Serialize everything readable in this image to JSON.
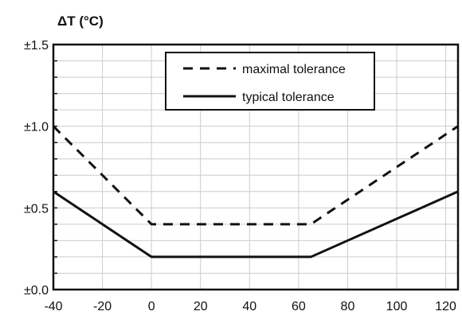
{
  "chart_data": {
    "type": "line",
    "title": "",
    "ylabel": "ΔT (°C)",
    "xlabel": "",
    "xlim": [
      -40,
      125
    ],
    "ylim": [
      0,
      1.5
    ],
    "x_ticks": [
      -40,
      -20,
      0,
      20,
      40,
      60,
      80,
      100,
      120
    ],
    "x_tick_labels": [
      "-40",
      "-20",
      "0",
      "20",
      "40",
      "60",
      "80",
      "100",
      "120"
    ],
    "y_ticks": [
      0,
      0.5,
      1.0,
      1.5
    ],
    "y_tick_labels": [
      "±0.0",
      "±0.5",
      "±1.0",
      "±1.5"
    ],
    "grid": true,
    "legend_position": "top-center",
    "colors": {
      "line": "#111111",
      "grid": "#cccccc",
      "frame": "#111111"
    },
    "series": [
      {
        "name": "maximal tolerance",
        "style": "dashed",
        "x": [
          -40,
          0,
          65,
          125
        ],
        "y": [
          1.0,
          0.4,
          0.4,
          1.0
        ]
      },
      {
        "name": "typical tolerance",
        "style": "solid",
        "x": [
          -40,
          0,
          65,
          125
        ],
        "y": [
          0.6,
          0.2,
          0.2,
          0.6
        ]
      }
    ]
  }
}
